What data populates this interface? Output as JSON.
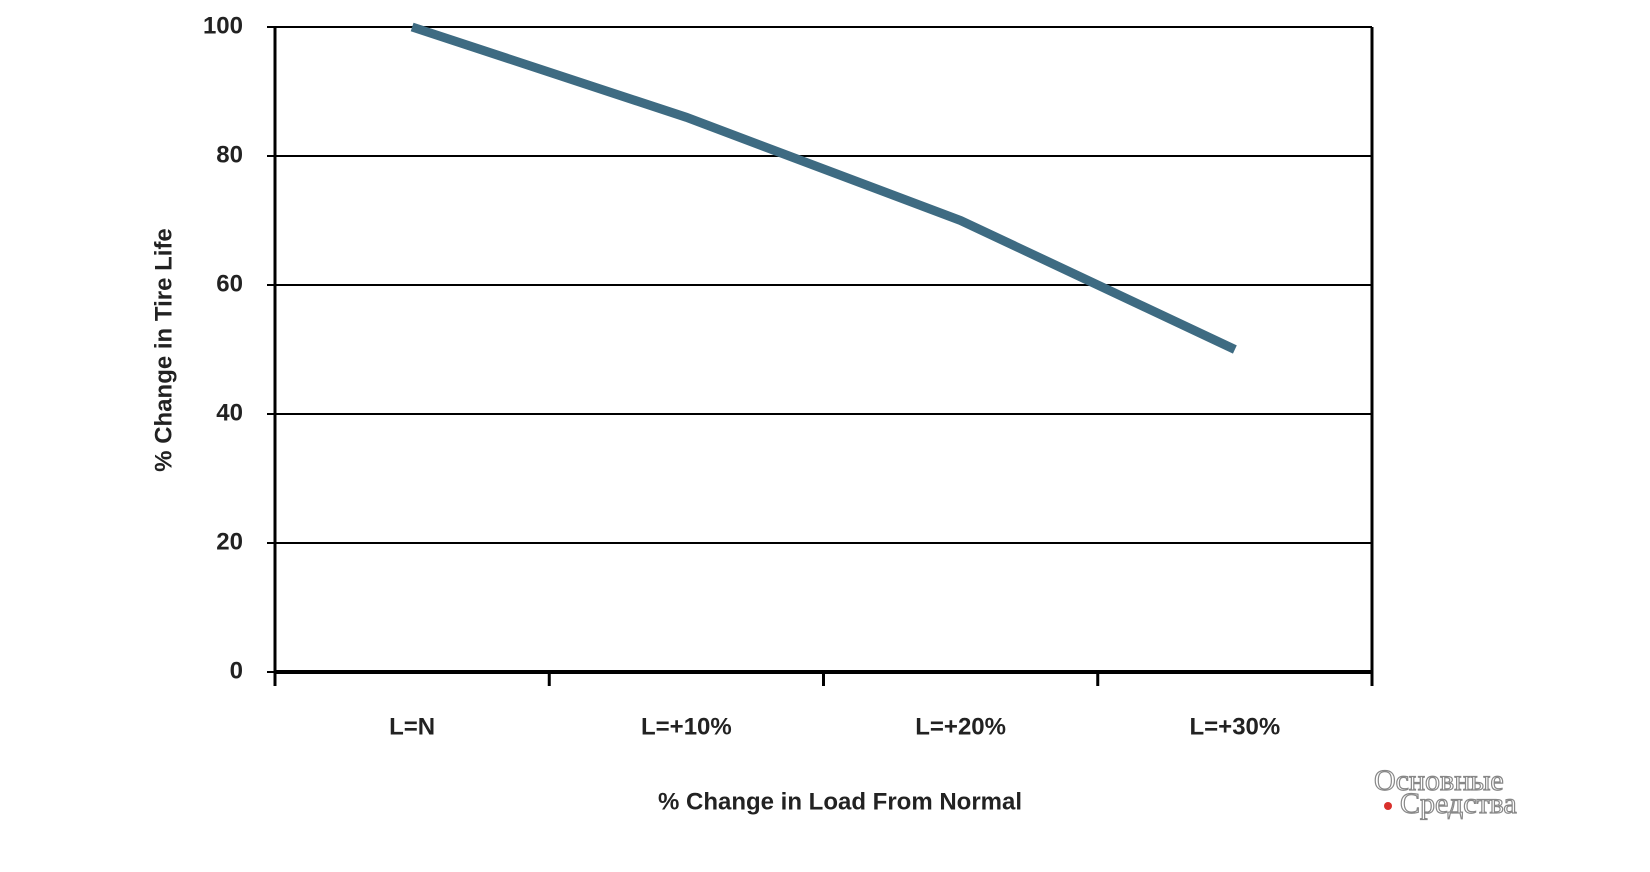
{
  "chart_data": {
    "type": "line",
    "x_label": "% Change in Load From Normal",
    "y_label": "% Change in Tire Life",
    "categories": [
      "L=N",
      "L=+10%",
      "L=+20%",
      "L=+30%"
    ],
    "series": [
      {
        "name": "Tire Life",
        "color": "#3e6b82",
        "values": [
          100,
          86,
          70,
          50
        ]
      }
    ],
    "ylim": [
      0,
      100
    ],
    "yticks": [
      0,
      20,
      40,
      60,
      80,
      100
    ],
    "grid": true,
    "watermark": [
      "Основные",
      "Средства"
    ]
  }
}
